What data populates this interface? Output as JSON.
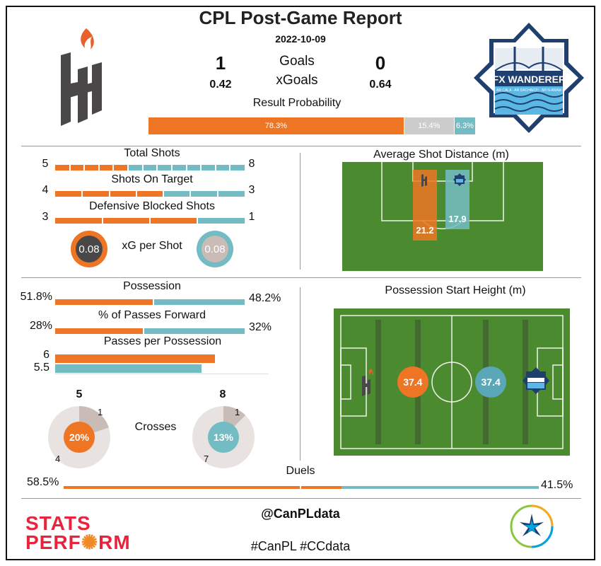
{
  "header": {
    "title": "CPL Post-Game Report",
    "date": "2022-10-09",
    "goals_label": "Goals",
    "xgoals_label": "xGoals",
    "home_goals": "1",
    "away_goals": "0",
    "home_xg": "0.42",
    "away_xg": "0.64",
    "result_prob_label": "Result Probability",
    "away_logo_text": "HFX WANDERERS",
    "away_logo_sub": "AR CALA · AR DACHAICH · AR N-ANAM"
  },
  "colors": {
    "home": "#ee7524",
    "away": "#74bcc4",
    "draw": "#cccccc"
  },
  "chart_data": [
    {
      "type": "bar",
      "title": "Result Probability",
      "categories": [
        "home",
        "draw",
        "away"
      ],
      "values": [
        78.3,
        15.4,
        6.3
      ],
      "labels": [
        "78.3%",
        "15.4%",
        "6.3%"
      ]
    },
    {
      "type": "bar",
      "series": [
        {
          "name": "Total Shots",
          "home": 5,
          "away": 8
        },
        {
          "name": "Shots On Target",
          "home": 4,
          "away": 3
        },
        {
          "name": "Defensive Blocked Shots",
          "home": 3,
          "away": 1
        }
      ]
    },
    {
      "type": "scatter",
      "title": "xG per Shot",
      "home": "0.08",
      "away": "0.08"
    },
    {
      "type": "bar",
      "title": "Average Shot Distance (m)",
      "home": 21.2,
      "away": 17.9,
      "labels": [
        "21.2",
        "17.9"
      ]
    },
    {
      "type": "bar",
      "series": [
        {
          "name": "Possession",
          "home": 51.8,
          "away": 48.2,
          "home_label": "51.8%",
          "away_label": "48.2%"
        },
        {
          "name": "% of Passes Forward",
          "home": 28,
          "away": 32,
          "home_label": "28%",
          "away_label": "32%"
        }
      ]
    },
    {
      "type": "bar",
      "title": "Passes per Possession",
      "home": 6,
      "away": 5.5,
      "labels": [
        "6",
        "5.5"
      ]
    },
    {
      "type": "pie",
      "title": "Crosses",
      "home": {
        "total": "5",
        "completed": 1,
        "failed": 4,
        "pct": "20%",
        "completed_label": "1",
        "failed_label": "4"
      },
      "away": {
        "total": "8",
        "completed": 1,
        "failed": 7,
        "pct": "13%",
        "completed_label": "1",
        "failed_label": "7"
      }
    },
    {
      "type": "scatter",
      "title": "Possession Start Height (m)",
      "home": 37.4,
      "away": 37.4,
      "labels": [
        "37.4",
        "37.4"
      ]
    },
    {
      "type": "bar",
      "title": "Duels",
      "home": 58.5,
      "away": 41.5,
      "labels": [
        "58.5%",
        "41.5%"
      ]
    }
  ],
  "footer": {
    "handle": "@CanPLdata",
    "hashtags": "#CanPL #CCdata",
    "sponsor_line1": "STATS",
    "sponsor_line2": "PERF",
    "sponsor_line3": "RM"
  }
}
